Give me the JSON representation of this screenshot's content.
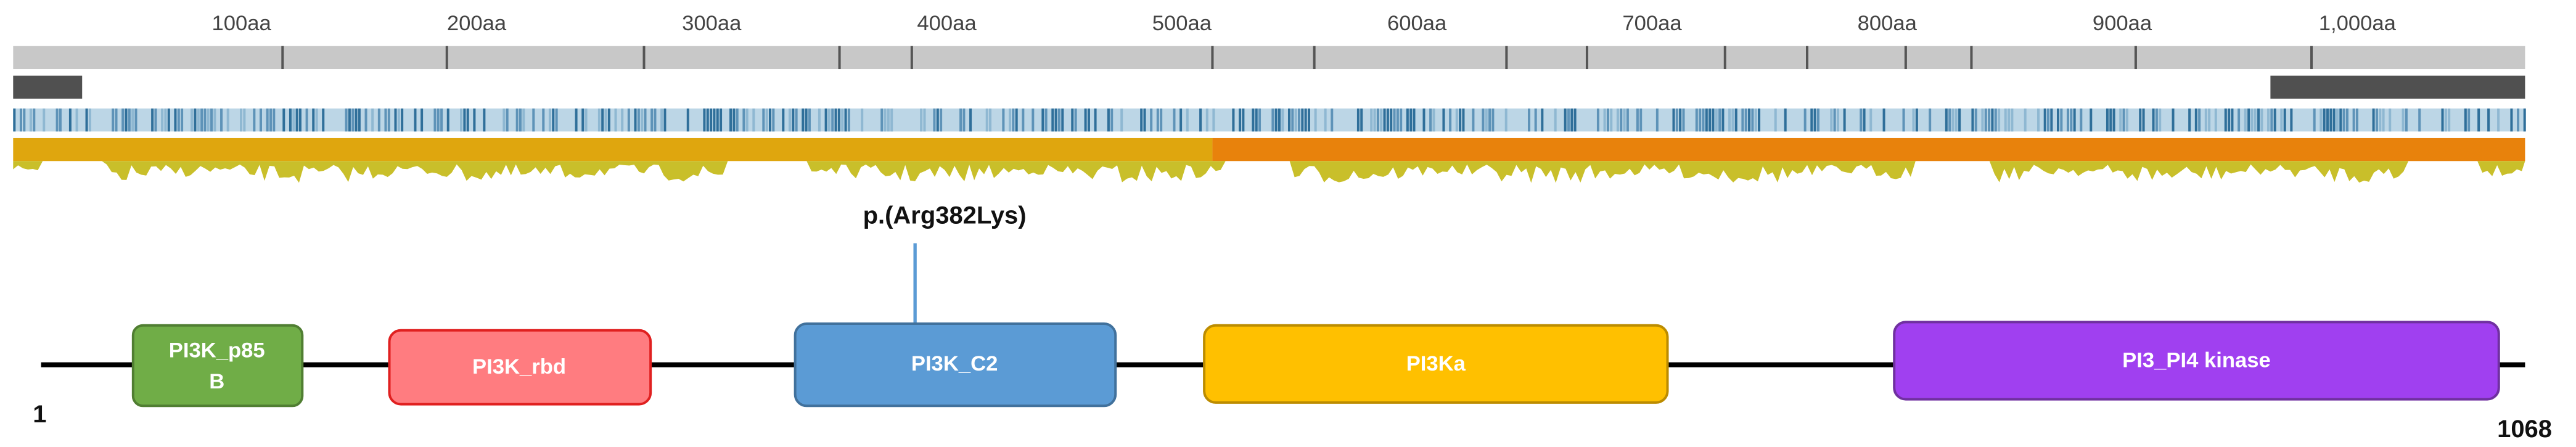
{
  "ruler": {
    "ticks": [
      "100aa",
      "200aa",
      "300aa",
      "400aa",
      "500aa",
      "600aa",
      "700aa",
      "800aa",
      "900aa",
      "1,000aa"
    ]
  },
  "variant": {
    "label": "p.(Arg382Lys)"
  },
  "protein": {
    "start": "1",
    "end": "1068"
  },
  "domains": [
    {
      "lines": [
        "PI3K_p85",
        "B"
      ]
    },
    {
      "lines": [
        "PI3K_rbd"
      ]
    },
    {
      "lines": [
        "PI3K_C2"
      ]
    },
    {
      "lines": [
        "PI3Ka"
      ]
    },
    {
      "lines": [
        "PI3_PI4 kinase"
      ]
    }
  ]
}
